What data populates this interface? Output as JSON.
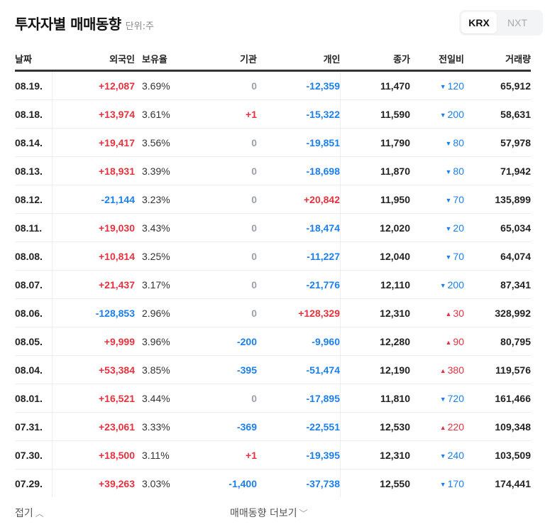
{
  "header": {
    "title": "투자자별 매매동향",
    "unit": "단위:주"
  },
  "market_toggle": {
    "options": [
      "KRX",
      "NXT"
    ],
    "selected": "KRX"
  },
  "table": {
    "columns": [
      "날짜",
      "외국인",
      "보유율",
      "기관",
      "개인",
      "종가",
      "전일비",
      "거래량"
    ],
    "rows": [
      {
        "date": "08.19.",
        "foreign": "+12,087",
        "hold": "3.69%",
        "inst": "0",
        "indiv": "-12,359",
        "close": "11,470",
        "dir": "down",
        "chg": "120",
        "vol": "65,912"
      },
      {
        "date": "08.18.",
        "foreign": "+13,974",
        "hold": "3.61%",
        "inst": "+1",
        "indiv": "-15,322",
        "close": "11,590",
        "dir": "down",
        "chg": "200",
        "vol": "58,631"
      },
      {
        "date": "08.14.",
        "foreign": "+19,417",
        "hold": "3.56%",
        "inst": "0",
        "indiv": "-19,851",
        "close": "11,790",
        "dir": "down",
        "chg": "80",
        "vol": "57,978"
      },
      {
        "date": "08.13.",
        "foreign": "+18,931",
        "hold": "3.39%",
        "inst": "0",
        "indiv": "-18,698",
        "close": "11,870",
        "dir": "down",
        "chg": "80",
        "vol": "71,942"
      },
      {
        "date": "08.12.",
        "foreign": "-21,144",
        "hold": "3.23%",
        "inst": "0",
        "indiv": "+20,842",
        "close": "11,950",
        "dir": "down",
        "chg": "70",
        "vol": "135,899"
      },
      {
        "date": "08.11.",
        "foreign": "+19,030",
        "hold": "3.43%",
        "inst": "0",
        "indiv": "-18,474",
        "close": "12,020",
        "dir": "down",
        "chg": "20",
        "vol": "65,034"
      },
      {
        "date": "08.08.",
        "foreign": "+10,814",
        "hold": "3.25%",
        "inst": "0",
        "indiv": "-11,227",
        "close": "12,040",
        "dir": "down",
        "chg": "70",
        "vol": "64,074"
      },
      {
        "date": "08.07.",
        "foreign": "+21,437",
        "hold": "3.17%",
        "inst": "0",
        "indiv": "-21,776",
        "close": "12,110",
        "dir": "down",
        "chg": "200",
        "vol": "87,341"
      },
      {
        "date": "08.06.",
        "foreign": "-128,853",
        "hold": "2.96%",
        "inst": "0",
        "indiv": "+128,329",
        "close": "12,310",
        "dir": "up",
        "chg": "30",
        "vol": "328,992"
      },
      {
        "date": "08.05.",
        "foreign": "+9,999",
        "hold": "3.96%",
        "inst": "-200",
        "indiv": "-9,960",
        "close": "12,280",
        "dir": "up",
        "chg": "90",
        "vol": "80,795"
      },
      {
        "date": "08.04.",
        "foreign": "+53,384",
        "hold": "3.85%",
        "inst": "-395",
        "indiv": "-51,474",
        "close": "12,190",
        "dir": "up",
        "chg": "380",
        "vol": "119,576"
      },
      {
        "date": "08.01.",
        "foreign": "+16,521",
        "hold": "3.44%",
        "inst": "0",
        "indiv": "-17,895",
        "close": "11,810",
        "dir": "down",
        "chg": "720",
        "vol": "161,466"
      },
      {
        "date": "07.31.",
        "foreign": "+23,061",
        "hold": "3.33%",
        "inst": "-369",
        "indiv": "-22,551",
        "close": "12,530",
        "dir": "up",
        "chg": "220",
        "vol": "109,348"
      },
      {
        "date": "07.30.",
        "foreign": "+18,500",
        "hold": "3.11%",
        "inst": "+1",
        "indiv": "-19,395",
        "close": "12,310",
        "dir": "down",
        "chg": "240",
        "vol": "103,509"
      },
      {
        "date": "07.29.",
        "foreign": "+39,263",
        "hold": "3.03%",
        "inst": "-1,400",
        "indiv": "-37,738",
        "close": "12,550",
        "dir": "down",
        "chg": "170",
        "vol": "174,441"
      }
    ]
  },
  "footer": {
    "fold_label": "접기",
    "more_label": "매매동향 더보기"
  },
  "colors": {
    "up": "#e5323e",
    "down": "#1b7fec",
    "zero": "#9aa1ab"
  }
}
